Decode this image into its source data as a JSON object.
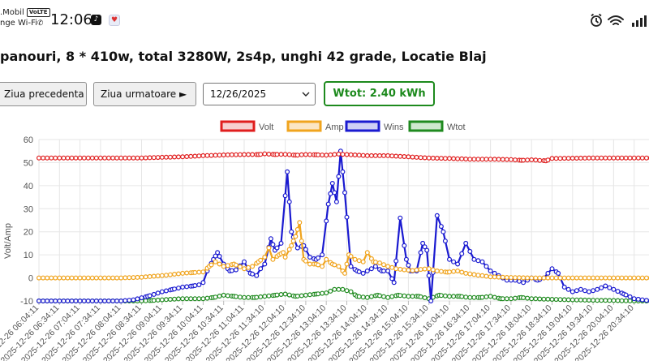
{
  "status_bar": {
    "carrier_line1": ".Mobil",
    "volte": "VoLTE",
    "carrier_line2": "nge Wi-Fi",
    "time": "12:06",
    "icons": [
      "tiktok-icon",
      "app-notification-icon",
      "alarm-icon",
      "wifi-icon",
      "signal-icon"
    ]
  },
  "header": {
    "title": "panouri, 8 * 410w, total 3280W, 2s4p, unghi 42 grade, Locatie Blaj"
  },
  "controls": {
    "prev_label": "Ziua precedenta",
    "next_label": "Ziua urmatoare ►",
    "date_value": "12/26/2025",
    "wtot_label": "Wtot: 2.40 kWh"
  },
  "colors": {
    "volt": "#e01e1e",
    "amp": "#f0a41e",
    "wins": "#1a1ad0",
    "wtot": "#1f8a1f",
    "wtot_box": "#1d8a1d",
    "grid": "#e6e6e6"
  },
  "chart_data": {
    "type": "line",
    "ylabel": "Volt/Amp",
    "ylim": [
      -10,
      60
    ],
    "yticks": [
      -10,
      0,
      10,
      20,
      30,
      40,
      50,
      60
    ],
    "grid": true,
    "legend_position": "top",
    "x_tick_labels": [
      "2025-12-26 06:04:11",
      "2025-12-26 06:34:11",
      "2025-12-26 07:04:11",
      "2025-12-26 07:34:11",
      "2025-12-26 08:04:11",
      "2025-12-26 08:34:11",
      "2025-12-26 09:04:11",
      "2025-12-26 09:34:11",
      "2025-12-26 10:04:11",
      "2025-12-26 10:34:11",
      "2025-12-26 11:04:11",
      "2025-12-26 11:34:10",
      "2025-12-26 12:04:10",
      "2025-12-26 12:34:10",
      "2025-12-26 13:04:10",
      "2025-12-26 13:34:10",
      "2025-12-26 14:04:10",
      "2025-12-26 14:34:10",
      "2025-12-26 15:04:10",
      "2025-12-26 15:34:10",
      "2025-12-26 16:04:10",
      "2025-12-26 16:34:10",
      "2025-12-26 17:04:10",
      "2025-12-26 17:34:10",
      "2025-12-26 18:04:10",
      "2025-12-26 18:34:10",
      "2025-12-26 19:04:10",
      "2025-12-26 19:34:10",
      "2025-12-26 20:04:10",
      "2025-12-26 20:34:10"
    ],
    "series": [
      {
        "name": "Volt",
        "points": [
          [
            0,
            52
          ],
          [
            2,
            52
          ],
          [
            4,
            52
          ],
          [
            5,
            52
          ],
          [
            6,
            52.3
          ],
          [
            7,
            52.5
          ],
          [
            8,
            53
          ],
          [
            9,
            53.3
          ],
          [
            10,
            53.5
          ],
          [
            10.7,
            53.5
          ],
          [
            11,
            53.8
          ],
          [
            11.5,
            53.5
          ],
          [
            12,
            53.6
          ],
          [
            12.5,
            53.2
          ],
          [
            13,
            53.5
          ],
          [
            13.5,
            53.4
          ],
          [
            14,
            53.2
          ],
          [
            14.6,
            53.7
          ],
          [
            15,
            53.5
          ],
          [
            16,
            53
          ],
          [
            17,
            53
          ],
          [
            18,
            52.5
          ],
          [
            19,
            52
          ],
          [
            20,
            51.8
          ],
          [
            21,
            51.5
          ],
          [
            22,
            51.5
          ],
          [
            23,
            51.3
          ],
          [
            23.5,
            51
          ],
          [
            24,
            51.2
          ],
          [
            24.7,
            50.8
          ],
          [
            25,
            51.8
          ],
          [
            27,
            52
          ],
          [
            29,
            52
          ],
          [
            29.8,
            52
          ]
        ]
      },
      {
        "name": "Amp",
        "points": [
          [
            0,
            0
          ],
          [
            4,
            0
          ],
          [
            5,
            0.3
          ],
          [
            6,
            1
          ],
          [
            7,
            2
          ],
          [
            7.5,
            2.3
          ],
          [
            8,
            2.6
          ],
          [
            8.3,
            5
          ],
          [
            8.6,
            7
          ],
          [
            9,
            5
          ],
          [
            9.5,
            6
          ],
          [
            10,
            4
          ],
          [
            10.4,
            5
          ],
          [
            10.7,
            7
          ],
          [
            11,
            9
          ],
          [
            11.2,
            13
          ],
          [
            11.4,
            8
          ],
          [
            11.7,
            10
          ],
          [
            11.9,
            11
          ],
          [
            12,
            9
          ],
          [
            12.3,
            14
          ],
          [
            12.5,
            18
          ],
          [
            12.7,
            24
          ],
          [
            12.9,
            8
          ],
          [
            13.2,
            6
          ],
          [
            13.5,
            6
          ],
          [
            13.8,
            5
          ],
          [
            14,
            8
          ],
          [
            14.3,
            6
          ],
          [
            14.6,
            5
          ],
          [
            14.9,
            2
          ],
          [
            15.1,
            10
          ],
          [
            15.4,
            8
          ],
          [
            15.8,
            7
          ],
          [
            16,
            11
          ],
          [
            16.3,
            7
          ],
          [
            16.6,
            6.5
          ],
          [
            17,
            5
          ],
          [
            17.4,
            4
          ],
          [
            17.8,
            3.5
          ],
          [
            18.2,
            3.2
          ],
          [
            18.6,
            3.7
          ],
          [
            19,
            4
          ],
          [
            19.4,
            3
          ],
          [
            19.9,
            2.5
          ],
          [
            20.4,
            3
          ],
          [
            20.8,
            2
          ],
          [
            21.4,
            1.2
          ],
          [
            22,
            0.5
          ],
          [
            22.8,
            0.2
          ],
          [
            24,
            0
          ],
          [
            26,
            0
          ],
          [
            29.8,
            0
          ]
        ]
      },
      {
        "name": "Wins",
        "points": [
          [
            0,
            -10
          ],
          [
            4,
            -10
          ],
          [
            4.6,
            -9.5
          ],
          [
            5.3,
            -8
          ],
          [
            6,
            -6
          ],
          [
            6.5,
            -5
          ],
          [
            7,
            -4
          ],
          [
            7.5,
            -3.5
          ],
          [
            7.8,
            -3
          ],
          [
            8,
            -2
          ],
          [
            8.2,
            3
          ],
          [
            8.5,
            8
          ],
          [
            8.7,
            11
          ],
          [
            9,
            6
          ],
          [
            9.3,
            3
          ],
          [
            9.6,
            3.5
          ],
          [
            10,
            7
          ],
          [
            10.3,
            2
          ],
          [
            10.6,
            1
          ],
          [
            10.8,
            4
          ],
          [
            11,
            6
          ],
          [
            11.3,
            17
          ],
          [
            11.5,
            12
          ],
          [
            11.8,
            15
          ],
          [
            12.1,
            46
          ],
          [
            12.3,
            20
          ],
          [
            12.6,
            13
          ],
          [
            12.9,
            14
          ],
          [
            13.2,
            9
          ],
          [
            13.5,
            8
          ],
          [
            13.8,
            10
          ],
          [
            14.1,
            32
          ],
          [
            14.3,
            41
          ],
          [
            14.5,
            33
          ],
          [
            14.7,
            55
          ],
          [
            14.9,
            37
          ],
          [
            15.2,
            5
          ],
          [
            15.5,
            3
          ],
          [
            15.8,
            2
          ],
          [
            16,
            3
          ],
          [
            16.4,
            5
          ],
          [
            16.7,
            3
          ],
          [
            17,
            3
          ],
          [
            17.3,
            -2
          ],
          [
            17.6,
            26
          ],
          [
            17.9,
            8
          ],
          [
            18.1,
            3
          ],
          [
            18.4,
            3
          ],
          [
            18.7,
            15
          ],
          [
            18.9,
            12
          ],
          [
            19.1,
            -10
          ],
          [
            19.4,
            27
          ],
          [
            19.7,
            20
          ],
          [
            20,
            8
          ],
          [
            20.4,
            6
          ],
          [
            20.8,
            15
          ],
          [
            21.2,
            8
          ],
          [
            21.6,
            7
          ],
          [
            22,
            3
          ],
          [
            22.4,
            1
          ],
          [
            22.8,
            -1
          ],
          [
            23.2,
            -1
          ],
          [
            23.6,
            -2
          ],
          [
            24,
            0
          ],
          [
            24.3,
            -1
          ],
          [
            24.6,
            0
          ],
          [
            25,
            4
          ],
          [
            25.3,
            2
          ],
          [
            25.6,
            -4
          ],
          [
            26,
            -6
          ],
          [
            26.4,
            -5
          ],
          [
            26.8,
            -6
          ],
          [
            27.2,
            -5
          ],
          [
            27.6,
            -3.5
          ],
          [
            28,
            -5
          ],
          [
            28.5,
            -7
          ],
          [
            29,
            -9
          ],
          [
            29.8,
            -10
          ]
        ]
      },
      {
        "name": "Wtot",
        "points": [
          [
            0,
            -10
          ],
          [
            5,
            -10
          ],
          [
            5.5,
            -9.8
          ],
          [
            6,
            -9.5
          ],
          [
            7,
            -9
          ],
          [
            8,
            -9
          ],
          [
            8.5,
            -8.5
          ],
          [
            9,
            -7.5
          ],
          [
            9.5,
            -8
          ],
          [
            10,
            -8.5
          ],
          [
            10.5,
            -8.5
          ],
          [
            11,
            -8
          ],
          [
            11.5,
            -7.5
          ],
          [
            12,
            -7
          ],
          [
            12.5,
            -8
          ],
          [
            13,
            -7.5
          ],
          [
            13.5,
            -7
          ],
          [
            14,
            -6.5
          ],
          [
            14.4,
            -5
          ],
          [
            14.8,
            -5
          ],
          [
            15.2,
            -6
          ],
          [
            15.5,
            -8
          ],
          [
            16,
            -8.5
          ],
          [
            16.5,
            -7.5
          ],
          [
            17,
            -8.5
          ],
          [
            17.5,
            -7.5
          ],
          [
            18,
            -8
          ],
          [
            18.5,
            -8
          ],
          [
            19,
            -9
          ],
          [
            19.5,
            -7.5
          ],
          [
            20,
            -8
          ],
          [
            20.5,
            -8
          ],
          [
            21,
            -8.5
          ],
          [
            21.5,
            -8.5
          ],
          [
            22,
            -8
          ],
          [
            22.5,
            -9
          ],
          [
            23,
            -9
          ],
          [
            23.5,
            -8.5
          ],
          [
            24,
            -9
          ],
          [
            25,
            -9.3
          ],
          [
            26,
            -9.5
          ],
          [
            27,
            -9.7
          ],
          [
            28,
            -9.8
          ],
          [
            29,
            -10
          ],
          [
            29.8,
            -10
          ]
        ]
      }
    ]
  }
}
